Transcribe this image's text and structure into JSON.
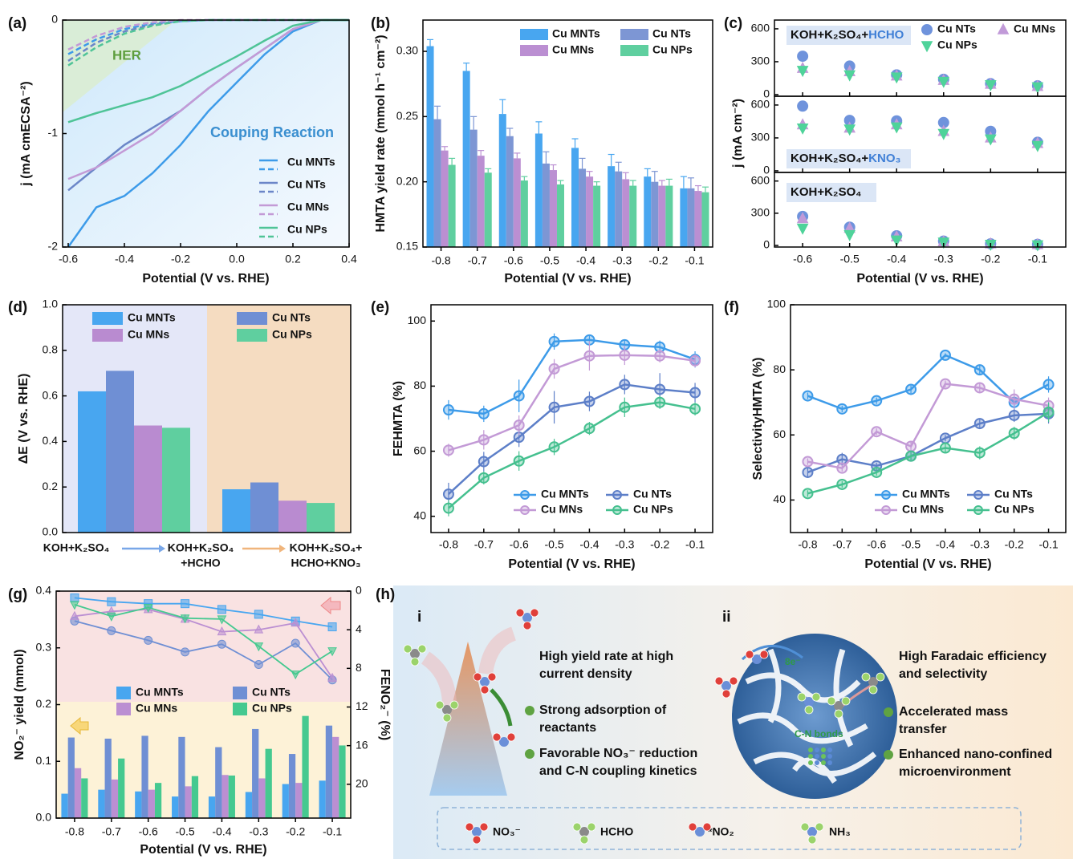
{
  "chart_data": [
    {
      "type": "line",
      "label": "(a)",
      "x": [
        -0.6,
        -0.5,
        -0.4,
        -0.3,
        -0.2,
        -0.1,
        0,
        0.1,
        0.2,
        0.3,
        0.4
      ],
      "xlim": [
        -0.62,
        0.4
      ],
      "ylim": [
        -2,
        0
      ],
      "xticks": [
        -0.6,
        -0.4,
        -0.2,
        {
          "value": 0,
          "label": "0.0"
        },
        0.2,
        0.4
      ],
      "yticks": [
        -2,
        -1,
        0
      ],
      "x_label": "Potential (V vs. RHE)",
      "y_label": "j (mA cmECSA⁻²)",
      "annotations": [
        "HER",
        "Couping Reaction"
      ],
      "series": [
        {
          "name": "Cu MNTs",
          "color": "#3d9be9",
          "values": [
            -2.0,
            -1.65,
            -1.55,
            -1.35,
            -1.1,
            -0.8,
            -0.55,
            -0.3,
            -0.1,
            0,
            0
          ],
          "her_values": [
            -0.3,
            -0.17,
            -0.08,
            -0.03,
            -0.01,
            0,
            0,
            0,
            0,
            0,
            0
          ]
        },
        {
          "name": "Cu NTs",
          "color": "#6b86c8",
          "values": [
            -1.5,
            -1.3,
            -1.1,
            -0.95,
            -0.8,
            -0.6,
            -0.42,
            -0.25,
            -0.08,
            0,
            0
          ],
          "her_values": [
            -0.36,
            -0.2,
            -0.1,
            -0.04,
            -0.01,
            0,
            0,
            0,
            0,
            0,
            0
          ]
        },
        {
          "name": "Cu MNs",
          "color": "#c39ad6",
          "values": [
            -1.4,
            -1.3,
            -1.15,
            -1.0,
            -0.8,
            -0.6,
            -0.42,
            -0.25,
            -0.08,
            0,
            0
          ],
          "her_values": [
            -0.26,
            -0.14,
            -0.06,
            -0.02,
            0,
            0,
            0,
            0,
            0,
            0,
            0
          ]
        },
        {
          "name": "Cu NPs",
          "color": "#4fc497",
          "values": [
            -0.9,
            -0.82,
            -0.75,
            -0.68,
            -0.58,
            -0.45,
            -0.32,
            -0.18,
            -0.05,
            0,
            0
          ],
          "her_values": [
            -0.4,
            -0.24,
            -0.12,
            -0.05,
            -0.01,
            0,
            0,
            0,
            0,
            0,
            0
          ]
        }
      ]
    },
    {
      "type": "bar",
      "label": "(b)",
      "categories": [
        "-0.8",
        "-0.7",
        "-0.6",
        "-0.5",
        "-0.4",
        "-0.3",
        "-0.2",
        "-0.1"
      ],
      "ylim": [
        0.15,
        0.324
      ],
      "yticks": [
        0.15,
        {
          "value": 0.2,
          "label": "0.20"
        },
        0.25,
        {
          "value": 0.3,
          "label": "0.30"
        }
      ],
      "x_label": "Potential (V vs. RHE)",
      "y_label": "HMTA yield rate (mmol h⁻¹ cm⁻²)",
      "series": [
        {
          "name": "Cu MNTs",
          "color": "#48a6f0",
          "values": [
            0.304,
            0.285,
            0.252,
            0.237,
            0.226,
            0.212,
            0.204,
            0.195
          ],
          "errors": [
            0.005,
            0.006,
            0.011,
            0.009,
            0.007,
            0.009,
            0.006,
            0.009
          ]
        },
        {
          "name": "Cu NTs",
          "color": "#7d96d4",
          "values": [
            0.248,
            0.24,
            0.235,
            0.214,
            0.21,
            0.208,
            0.2,
            0.195
          ],
          "errors": [
            0.01,
            0.01,
            0.006,
            0.009,
            0.008,
            0.007,
            0.008,
            0.008
          ]
        },
        {
          "name": "Cu MNs",
          "color": "#bb8fd2",
          "values": [
            0.224,
            0.22,
            0.218,
            0.209,
            0.204,
            0.202,
            0.197,
            0.193
          ],
          "errors": [
            0.003,
            0.004,
            0.004,
            0.004,
            0.004,
            0.005,
            0.004,
            0.004
          ]
        },
        {
          "name": "Cu NPs",
          "color": "#5fcf9f",
          "values": [
            0.213,
            0.207,
            0.201,
            0.198,
            0.197,
            0.197,
            0.197,
            0.192
          ],
          "errors": [
            0.005,
            0.003,
            0.003,
            0.003,
            0.003,
            0.004,
            0.005,
            0.004
          ]
        }
      ]
    },
    {
      "type": "scatter",
      "label": "(c)",
      "x": [
        -0.6,
        -0.5,
        -0.4,
        -0.3,
        -0.2,
        -0.1
      ],
      "xlim": [
        -0.66,
        -0.04
      ],
      "xticks": [
        -0.6,
        -0.5,
        -0.4,
        -0.3,
        -0.2,
        -0.1
      ],
      "ylim": [
        -15,
        680
      ],
      "yticks": [
        0,
        300,
        600
      ],
      "x_label": "Potential (V vs. RHE)",
      "y_label": "j (mA cm⁻²)",
      "panels": [
        {
          "title": "KOH+K₂SO₄+",
          "highlight": "HCHO"
        },
        {
          "title": "KOH+K₂SO₄+",
          "highlight": "KNO₃"
        },
        {
          "title": "KOH+K₂SO₄"
        }
      ],
      "series": [
        {
          "name": "Cu NTs",
          "color": "#6f93dc",
          "marker": "circle",
          "panel_values": [
            [
              350,
              260,
              180,
              140,
              100,
              80
            ],
            [
              590,
              460,
              455,
              440,
              360,
              260
            ],
            [
              270,
              170,
              90,
              40,
              15,
              10
            ]
          ]
        },
        {
          "name": "Cu MNs",
          "color": "#c19ad8",
          "marker": "triangle-up",
          "panel_values": [
            [
              240,
              210,
              170,
              130,
              95,
              75
            ],
            [
              420,
              390,
              420,
              360,
              300,
              250
            ],
            [
              250,
              160,
              80,
              35,
              15,
              8
            ]
          ]
        },
        {
          "name": "Cu NPs",
          "color": "#4fd39a",
          "marker": "triangle-down",
          "panel_values": [
            [
              220,
              180,
              160,
              120,
              90,
              70
            ],
            [
              390,
              380,
              400,
              340,
              290,
              230
            ],
            [
              160,
              100,
              50,
              30,
              10,
              5
            ]
          ]
        }
      ]
    },
    {
      "type": "bar",
      "label": "(d)",
      "x_labels": [
        [
          "KOH+K₂SO₄"
        ],
        [
          "KOH+K₂SO₄",
          "+HCHO"
        ],
        [
          "KOH+K₂SO₄+",
          "HCHO+KNO₃"
        ]
      ],
      "ylim": [
        0,
        1
      ],
      "yticks": [
        {
          "value": 0,
          "label": "0.0"
        },
        0.2,
        0.4,
        0.6,
        0.8,
        {
          "value": 1,
          "label": "1.0"
        }
      ],
      "y_label": "ΔE (V vs. RHE)",
      "series": [
        {
          "name": "Cu MNTs",
          "color": "#48a6f0",
          "values": [
            0.62,
            0.19
          ]
        },
        {
          "name": "Cu NTs",
          "color": "#6f8fd4",
          "values": [
            0.71,
            0.22
          ]
        },
        {
          "name": "Cu MNs",
          "color": "#b98bd0",
          "values": [
            0.47,
            0.14
          ]
        },
        {
          "name": "Cu NPs",
          "color": "#5fcf9f",
          "values": [
            0.46,
            0.13
          ]
        }
      ]
    },
    {
      "type": "line",
      "label": "(e)",
      "x": [
        -0.8,
        -0.7,
        -0.6,
        -0.5,
        -0.4,
        -0.3,
        -0.2,
        -0.1
      ],
      "xlim": [
        -0.85,
        -0.05
      ],
      "xticks": [
        -0.8,
        -0.7,
        -0.6,
        -0.5,
        -0.4,
        -0.3,
        -0.2,
        -0.1
      ],
      "ylim": [
        35,
        105
      ],
      "yticks": [
        40,
        60,
        80,
        100
      ],
      "x_label": "Potential (V vs. RHE)",
      "y_label": "FEHMTA (%)",
      "series": [
        {
          "name": "Cu MNTs",
          "color": "#3d9be9",
          "values": [
            72.7,
            71.5,
            77,
            93.7,
            94.2,
            92.7,
            92,
            88.2
          ],
          "errors": [
            3,
            2.5,
            5,
            2.5,
            1.5,
            1.5,
            2,
            2.5
          ]
        },
        {
          "name": "Cu NTs",
          "color": "#5d7fc8",
          "values": [
            46.8,
            56.8,
            64.3,
            73.5,
            75.3,
            80.5,
            79,
            78
          ],
          "errors": [
            3.5,
            3,
            3,
            5,
            3,
            3,
            5,
            3
          ]
        },
        {
          "name": "Cu MNs",
          "color": "#c39ad6",
          "values": [
            60.3,
            63.5,
            68,
            85.3,
            89.3,
            89.5,
            89.3,
            87.8
          ],
          "errors": [
            2,
            3,
            3,
            3,
            4.5,
            3,
            2,
            2
          ]
        },
        {
          "name": "Cu NPs",
          "color": "#45c08f",
          "values": [
            42.5,
            51.8,
            57,
            61.3,
            67,
            73.5,
            75,
            73
          ],
          "errors": [
            2.5,
            2,
            3,
            2.5,
            2,
            3,
            2,
            2
          ]
        }
      ]
    },
    {
      "type": "line",
      "label": "(f)",
      "x": [
        -0.8,
        -0.7,
        -0.6,
        -0.5,
        -0.4,
        -0.3,
        -0.2,
        -0.1
      ],
      "xlim": [
        -0.85,
        -0.05
      ],
      "xticks": [
        -0.8,
        -0.7,
        -0.6,
        -0.5,
        -0.4,
        -0.3,
        -0.2,
        -0.1
      ],
      "ylim": [
        30,
        100
      ],
      "yticks": [
        40,
        60,
        80,
        100
      ],
      "x_label": "Potential (V vs. RHE)",
      "y_label": "SelectivityHMTA (%)",
      "series": [
        {
          "name": "Cu MNTs",
          "color": "#3d9be9",
          "values": [
            72,
            68,
            70.5,
            74,
            84.5,
            80,
            70,
            75.5
          ],
          "errors": [
            1,
            1,
            1,
            1.2,
            0.6,
            1.5,
            2,
            2.5
          ]
        },
        {
          "name": "Cu NTs",
          "color": "#5d7fc8",
          "values": [
            48.5,
            52.5,
            50.5,
            53.5,
            59,
            63.5,
            66,
            66.5
          ],
          "errors": [
            1.5,
            2,
            1,
            1.5,
            1,
            1.5,
            2,
            3
          ]
        },
        {
          "name": "Cu MNs",
          "color": "#c39ad6",
          "values": [
            51.8,
            49.8,
            61,
            56.5,
            75.7,
            74.5,
            71,
            69
          ],
          "errors": [
            1,
            1,
            1,
            1.5,
            1,
            1.5,
            3,
            2.5
          ]
        },
        {
          "name": "Cu NPs",
          "color": "#45c08f",
          "values": [
            42,
            44.8,
            48.5,
            53.5,
            56,
            54.5,
            60.5,
            67
          ],
          "errors": [
            1,
            1,
            1,
            1,
            1.5,
            2,
            2,
            3
          ]
        }
      ]
    },
    {
      "type": "bar_line",
      "label": "(g)",
      "categories": [
        "-0.8",
        "-0.7",
        "-0.6",
        "-0.5",
        "-0.4",
        "-0.3",
        "-0.2",
        "-0.1"
      ],
      "ylim": [
        0,
        0.4
      ],
      "yticks": [
        {
          "value": 0,
          "label": "0.0"
        },
        0.1,
        0.2,
        0.3,
        0.4
      ],
      "y2lim": [
        23.5,
        0
      ],
      "y2ticks": [
        0,
        4,
        8,
        12,
        16,
        20
      ],
      "x_label": "Potential (V vs. RHE)",
      "y_label": "NO₂⁻ yield (mmol)",
      "y2_label": "FENO₂⁻ (%)",
      "series": [
        {
          "name": "Cu MNTs",
          "color": "#48a6f0",
          "marker": "square",
          "values": [
            0.043,
            0.05,
            0.047,
            0.038,
            0.038,
            0.046,
            0.06,
            0.066
          ],
          "fe_values": [
            0.7,
            1.1,
            1.3,
            1.3,
            1.9,
            2.4,
            3.1,
            3.7
          ],
          "axis": "y2"
        },
        {
          "name": "Cu NTs",
          "color": "#6f8fd4",
          "marker": "circle",
          "values": [
            0.142,
            0.14,
            0.145,
            0.143,
            0.125,
            0.157,
            0.113,
            0.163
          ],
          "fe_values": [
            3.1,
            4.1,
            5.1,
            6.3,
            5.5,
            7.6,
            5.4,
            9.2
          ],
          "axis": "y2"
        },
        {
          "name": "Cu MNs",
          "color": "#bb8fd2",
          "marker": "triangle-up",
          "values": [
            0.088,
            0.068,
            0.05,
            0.056,
            0.076,
            0.07,
            0.062,
            0.143
          ],
          "fe_values": [
            2.6,
            2.1,
            1.9,
            2.9,
            4.2,
            4.0,
            3.3,
            9.0
          ],
          "axis": "y2"
        },
        {
          "name": "Cu NPs",
          "color": "#45c990",
          "marker": "triangle-down",
          "values": [
            0.07,
            0.105,
            0.062,
            0.074,
            0.075,
            0.122,
            0.18,
            0.128
          ],
          "fe_values": [
            1.4,
            2.6,
            1.7,
            2.8,
            2.9,
            5.7,
            8.6,
            6.2
          ],
          "axis": "y2"
        }
      ]
    }
  ],
  "diagram": {
    "label": "(h)",
    "part_i": "i",
    "part_ii": "ii",
    "i_heading": [
      "High yield rate at high",
      "current density"
    ],
    "i_points": [
      [
        "Strong adsorption of",
        "reactants"
      ],
      [
        "Favorable NO₃⁻ reduction",
        "and C-N coupling kinetics"
      ]
    ],
    "ii_labels": [
      "8e⁻",
      "C-N bonds"
    ],
    "ii_heading": [
      "High Faradaic efficiency",
      "and selectivity"
    ],
    "ii_points": [
      [
        "Accelerated mass",
        "transfer"
      ],
      [
        "Enhanced nano-confined",
        "microenvironment"
      ]
    ],
    "legend": [
      "NO₃⁻",
      "HCHO",
      "*NO₂",
      "NH₃"
    ]
  }
}
